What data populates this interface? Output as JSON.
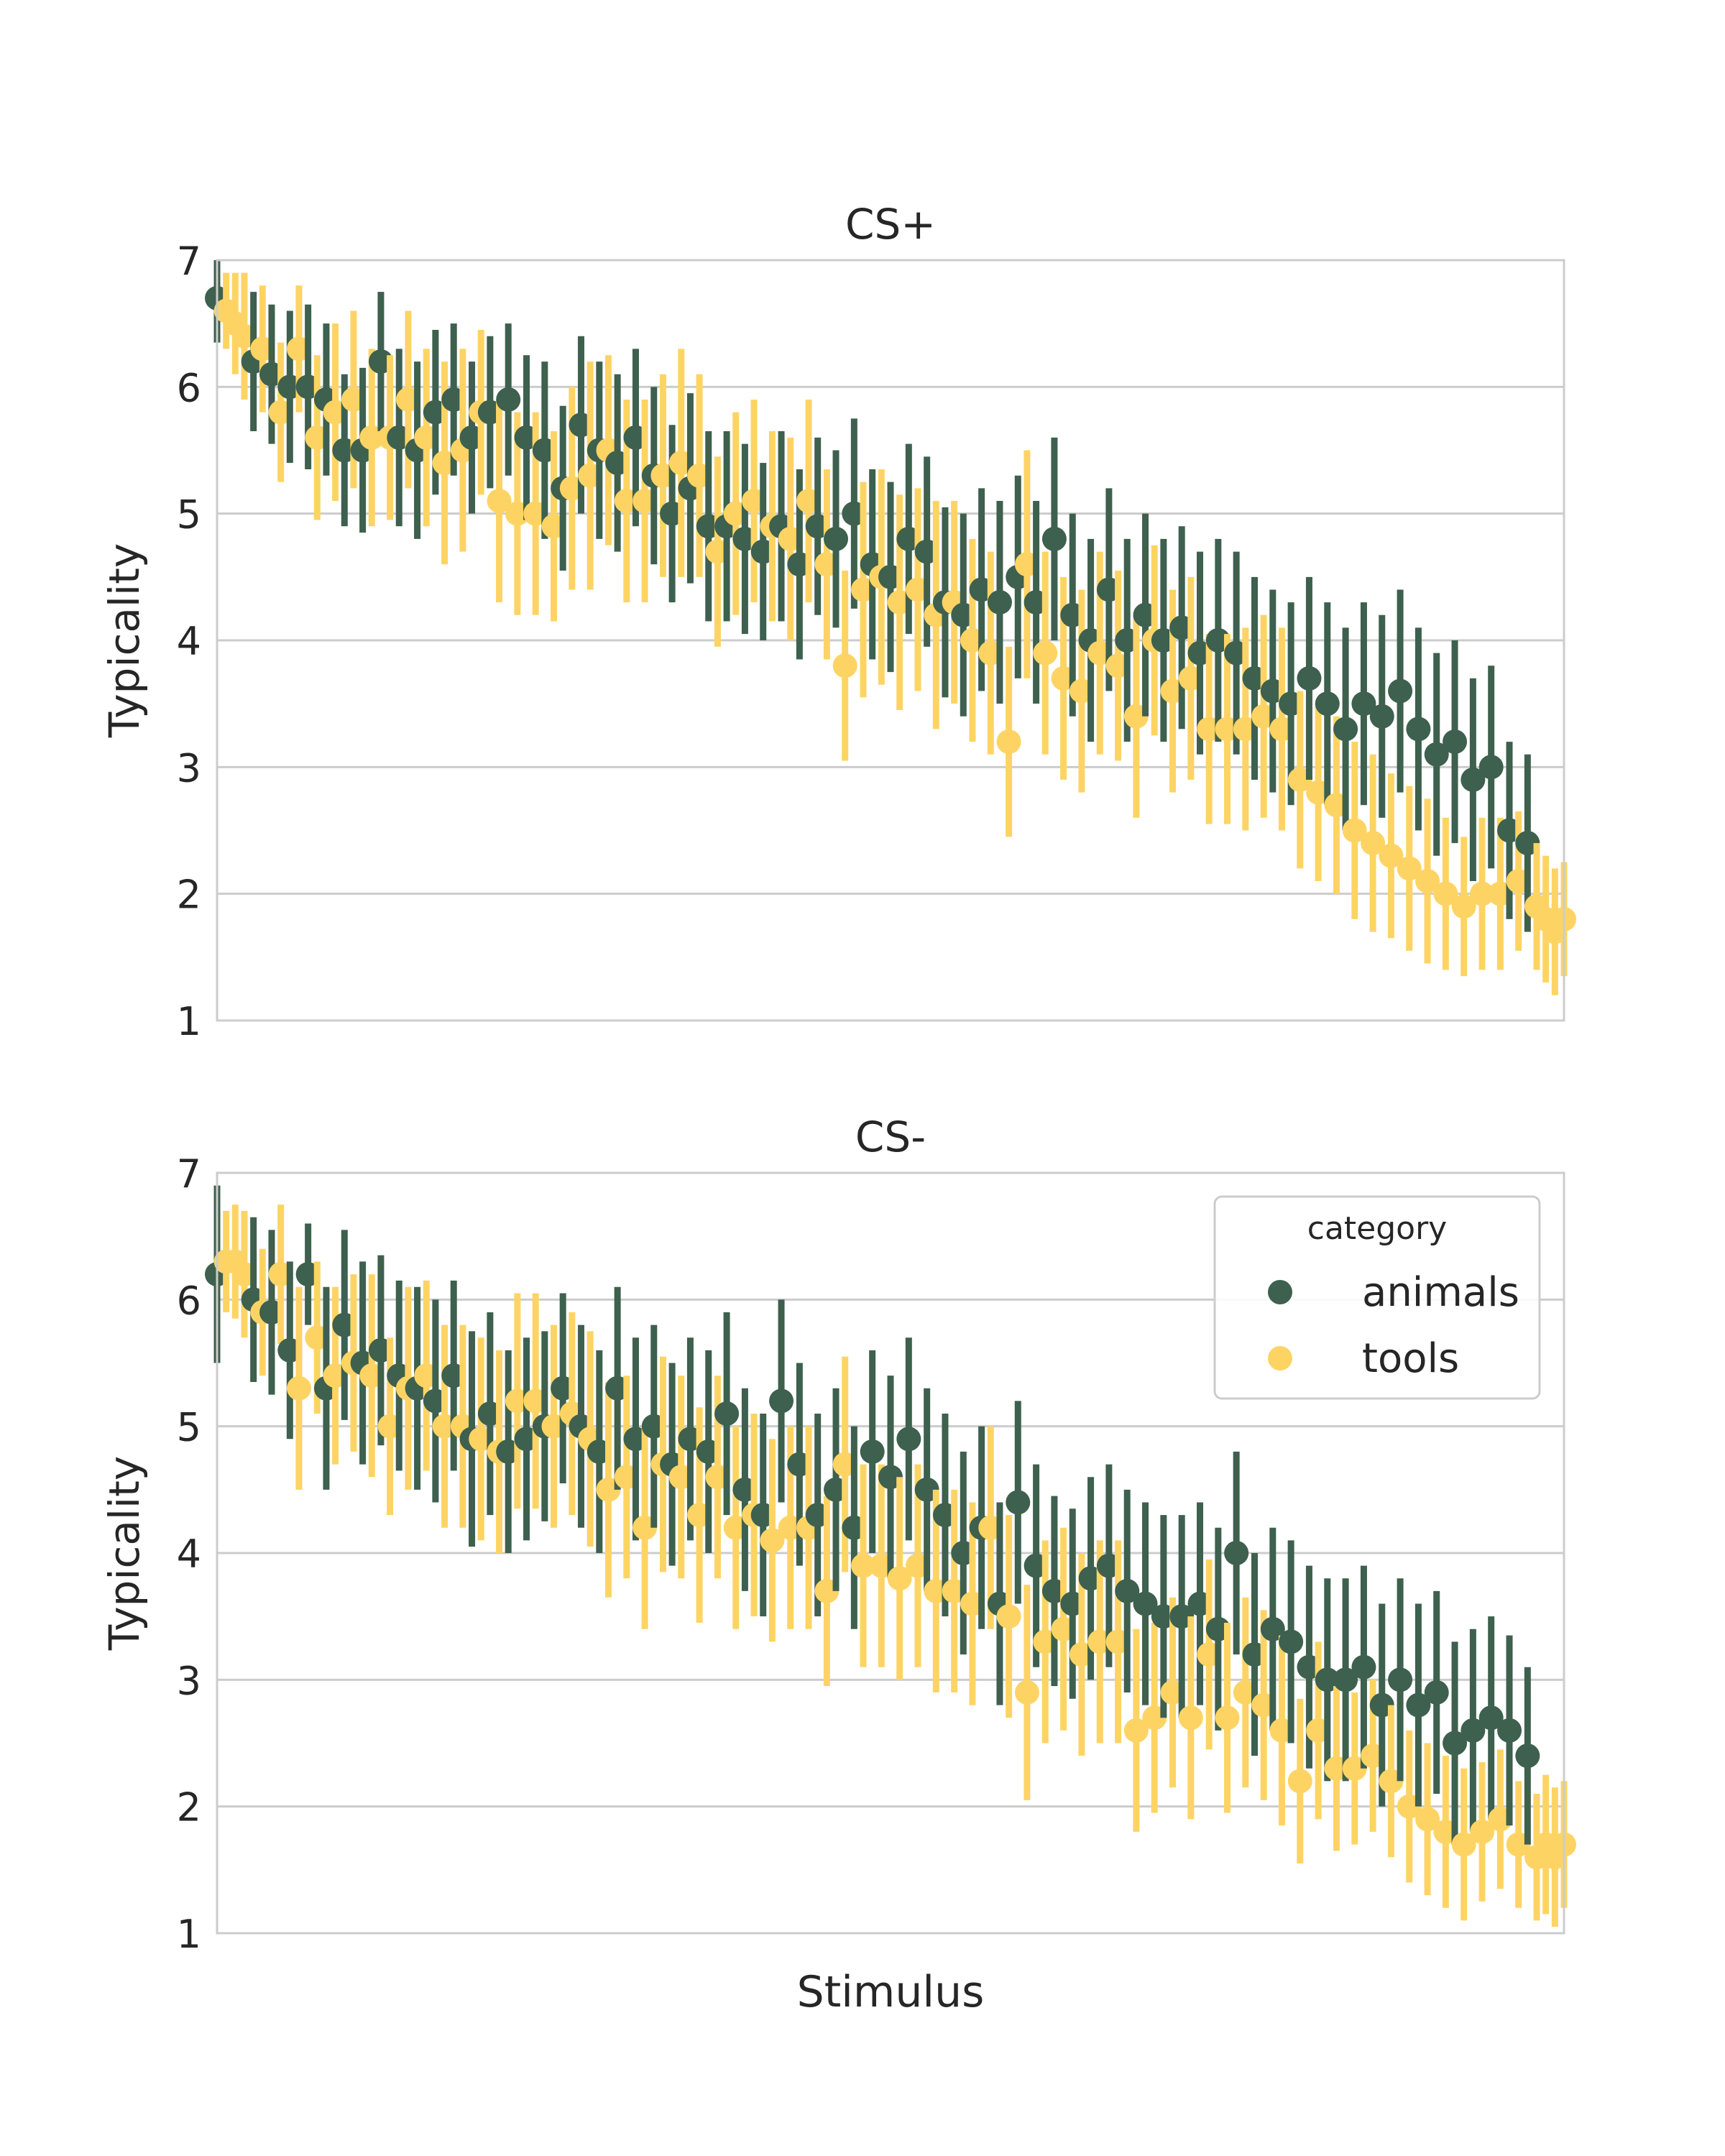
{
  "figure": {
    "xlabel": "Stimulus",
    "legend": {
      "title": "category",
      "placement": "top-right of lower panel",
      "items": [
        {
          "label": "animals",
          "color": "#3e604e"
        },
        {
          "label": "tools",
          "color": "#fdd464"
        }
      ]
    }
  },
  "chart_data": [
    {
      "type": "scatter",
      "title": "CS+",
      "xlabel": "",
      "ylabel": "Typicality",
      "ylim": [
        1,
        7
      ],
      "yticks": [
        1,
        2,
        3,
        4,
        5,
        6,
        7
      ],
      "grid": "horizontal",
      "error_bars": true,
      "series": [
        {
          "name": "animals",
          "color": "#3e604e",
          "x": [
            0,
            4,
            6,
            8,
            10,
            12,
            14,
            16,
            18,
            20,
            22,
            24,
            26,
            28,
            30,
            32,
            34,
            36,
            38,
            40,
            42,
            44,
            46,
            48,
            50,
            52,
            54,
            56,
            58,
            60,
            62,
            64,
            66,
            68,
            70,
            72,
            74,
            76,
            78,
            80,
            82,
            84,
            86,
            88,
            90,
            92,
            94,
            96,
            98,
            100,
            102,
            104,
            106,
            108,
            110,
            112,
            114,
            116,
            118,
            120,
            122,
            124,
            126,
            128,
            130,
            132,
            134,
            136,
            138,
            140,
            142,
            144
          ],
          "values": [
            6.7,
            6.2,
            6.1,
            6.0,
            6.0,
            5.9,
            5.5,
            5.5,
            6.2,
            5.6,
            5.5,
            5.8,
            5.9,
            5.6,
            5.8,
            5.9,
            5.6,
            5.5,
            5.2,
            5.7,
            5.5,
            5.4,
            5.6,
            5.3,
            5.0,
            5.2,
            4.9,
            4.9,
            4.8,
            4.7,
            4.9,
            4.6,
            4.9,
            4.8,
            5.0,
            4.6,
            4.5,
            4.8,
            4.7,
            4.3,
            4.2,
            4.4,
            4.3,
            4.5,
            4.3,
            4.8,
            4.2,
            4.0,
            4.4,
            4.0,
            4.2,
            4.0,
            4.1,
            3.9,
            4.0,
            3.9,
            3.7,
            3.6,
            3.5,
            3.7,
            3.5,
            3.3,
            3.5,
            3.4,
            3.6,
            3.3,
            3.1,
            3.2,
            2.9,
            3.0,
            2.5,
            2.4
          ],
          "errors": [
            0.35,
            0.55,
            0.55,
            0.6,
            0.65,
            0.6,
            0.6,
            0.65,
            0.55,
            0.7,
            0.7,
            0.65,
            0.6,
            0.6,
            0.6,
            0.6,
            0.65,
            0.7,
            0.65,
            0.7,
            0.7,
            0.7,
            0.7,
            0.7,
            0.7,
            0.75,
            0.75,
            0.75,
            0.75,
            0.7,
            0.75,
            0.75,
            0.7,
            0.7,
            0.75,
            0.75,
            0.75,
            0.75,
            0.75,
            0.75,
            0.8,
            0.8,
            0.8,
            0.8,
            0.8,
            0.8,
            0.8,
            0.8,
            0.8,
            0.8,
            0.8,
            0.8,
            0.8,
            0.8,
            0.8,
            0.8,
            0.8,
            0.8,
            0.8,
            0.8,
            0.8,
            0.8,
            0.8,
            0.8,
            0.8,
            0.8,
            0.8,
            0.8,
            0.8,
            0.8,
            0.7,
            0.7
          ]
        },
        {
          "name": "tools",
          "color": "#fdd464",
          "x": [
            1,
            2,
            3,
            5,
            7,
            9,
            11,
            13,
            15,
            17,
            19,
            21,
            23,
            25,
            27,
            29,
            31,
            33,
            35,
            37,
            39,
            41,
            43,
            45,
            47,
            49,
            51,
            53,
            55,
            57,
            59,
            61,
            63,
            65,
            67,
            69,
            71,
            73,
            75,
            77,
            79,
            81,
            83,
            85,
            87,
            89,
            91,
            93,
            95,
            97,
            99,
            101,
            103,
            105,
            107,
            109,
            111,
            113,
            115,
            117,
            119,
            121,
            123,
            125,
            127,
            129,
            131,
            133,
            135,
            137,
            139,
            141,
            143,
            145,
            146,
            147,
            148
          ],
          "values": [
            6.6,
            6.5,
            6.4,
            6.3,
            5.8,
            6.3,
            5.6,
            5.8,
            5.9,
            5.6,
            5.6,
            5.9,
            5.6,
            5.4,
            5.5,
            5.8,
            5.1,
            5.0,
            5.0,
            4.9,
            5.2,
            5.3,
            5.5,
            5.1,
            5.1,
            5.3,
            5.4,
            5.3,
            4.7,
            5.0,
            5.1,
            4.9,
            4.8,
            5.1,
            4.6,
            3.8,
            4.4,
            4.5,
            4.3,
            4.4,
            4.2,
            4.3,
            4.0,
            3.9,
            3.2,
            4.6,
            3.9,
            3.7,
            3.6,
            3.9,
            3.8,
            3.4,
            4.0,
            3.6,
            3.7,
            3.3,
            3.3,
            3.3,
            3.4,
            3.3,
            2.9,
            2.8,
            2.7,
            2.5,
            2.4,
            2.3,
            2.2,
            2.1,
            2.0,
            1.9,
            2.0,
            2.0,
            2.1,
            1.9,
            1.8,
            1.7,
            1.8
          ],
          "errors": [
            0.3,
            0.4,
            0.5,
            0.5,
            0.55,
            0.5,
            0.65,
            0.7,
            0.7,
            0.7,
            0.65,
            0.7,
            0.7,
            0.8,
            0.8,
            0.65,
            0.8,
            0.8,
            0.8,
            0.75,
            0.8,
            0.9,
            0.75,
            0.8,
            0.8,
            0.8,
            0.9,
            0.8,
            0.75,
            0.8,
            0.8,
            0.75,
            0.8,
            0.8,
            0.75,
            0.75,
            0.85,
            0.85,
            0.85,
            0.8,
            0.9,
            0.8,
            0.8,
            0.8,
            0.75,
            0.9,
            0.8,
            0.8,
            0.8,
            0.8,
            0.75,
            0.8,
            0.75,
            0.8,
            0.8,
            0.75,
            0.75,
            0.8,
            0.8,
            0.8,
            0.7,
            0.7,
            0.7,
            0.7,
            0.7,
            0.65,
            0.65,
            0.65,
            0.6,
            0.55,
            0.6,
            0.6,
            0.55,
            0.5,
            0.5,
            0.5,
            0.45
          ]
        }
      ]
    },
    {
      "type": "scatter",
      "title": "CS-",
      "xlabel": "Stimulus",
      "ylabel": "Typicality",
      "ylim": [
        1,
        7
      ],
      "yticks": [
        1,
        2,
        3,
        4,
        5,
        6,
        7
      ],
      "grid": "horizontal",
      "error_bars": true,
      "series": [
        {
          "name": "animals",
          "color": "#3e604e",
          "x": [
            0,
            4,
            6,
            8,
            10,
            12,
            14,
            16,
            18,
            20,
            22,
            24,
            26,
            28,
            30,
            32,
            34,
            36,
            38,
            40,
            42,
            44,
            46,
            48,
            50,
            52,
            54,
            56,
            58,
            60,
            62,
            64,
            66,
            68,
            70,
            72,
            74,
            76,
            78,
            80,
            82,
            84,
            86,
            88,
            90,
            92,
            94,
            96,
            98,
            100,
            102,
            104,
            106,
            108,
            110,
            112,
            114,
            116,
            118,
            120,
            122,
            124,
            126,
            128,
            130,
            132,
            134,
            136,
            138,
            140,
            142,
            144
          ],
          "values": [
            6.2,
            6.0,
            5.9,
            5.6,
            6.2,
            5.3,
            5.8,
            5.5,
            5.6,
            5.4,
            5.3,
            5.2,
            5.4,
            4.9,
            5.1,
            4.8,
            4.9,
            5.0,
            5.3,
            5.0,
            4.8,
            5.3,
            4.9,
            5.0,
            4.7,
            4.9,
            4.8,
            5.1,
            4.5,
            4.3,
            5.2,
            4.7,
            4.3,
            4.5,
            4.2,
            4.8,
            4.6,
            4.9,
            4.5,
            4.3,
            4.0,
            4.2,
            3.6,
            4.4,
            3.9,
            3.7,
            3.6,
            3.8,
            3.9,
            3.7,
            3.6,
            3.5,
            3.5,
            3.6,
            3.4,
            4.0,
            3.2,
            3.4,
            3.3,
            3.1,
            3.0,
            3.0,
            3.1,
            2.8,
            3.0,
            2.8,
            2.9,
            2.5,
            2.6,
            2.7,
            2.6,
            2.4
          ],
          "errors": [
            0.7,
            0.65,
            0.65,
            0.7,
            0.4,
            0.8,
            0.75,
            0.8,
            0.75,
            0.75,
            0.8,
            0.8,
            0.75,
            0.85,
            0.8,
            0.8,
            0.8,
            0.75,
            0.75,
            0.8,
            0.8,
            0.8,
            0.8,
            0.8,
            0.8,
            0.8,
            0.8,
            0.8,
            0.8,
            0.8,
            0.8,
            0.8,
            0.8,
            0.8,
            0.8,
            0.8,
            0.8,
            0.8,
            0.8,
            0.8,
            0.8,
            0.8,
            0.8,
            0.8,
            0.8,
            0.75,
            0.75,
            0.8,
            0.8,
            0.8,
            0.8,
            0.8,
            0.8,
            0.8,
            0.8,
            0.8,
            0.8,
            0.8,
            0.8,
            0.8,
            0.8,
            0.8,
            0.8,
            0.8,
            0.8,
            0.8,
            0.8,
            0.8,
            0.8,
            0.8,
            0.75,
            0.7
          ]
        },
        {
          "name": "tools",
          "color": "#fdd464",
          "x": [
            1,
            2,
            3,
            5,
            7,
            9,
            11,
            13,
            15,
            17,
            19,
            21,
            23,
            25,
            27,
            29,
            31,
            33,
            35,
            37,
            39,
            41,
            43,
            45,
            47,
            49,
            51,
            53,
            55,
            57,
            59,
            61,
            63,
            65,
            67,
            69,
            71,
            73,
            75,
            77,
            79,
            81,
            83,
            85,
            87,
            89,
            91,
            93,
            95,
            97,
            99,
            101,
            103,
            105,
            107,
            109,
            111,
            113,
            115,
            117,
            119,
            121,
            123,
            125,
            127,
            129,
            131,
            133,
            135,
            137,
            139,
            141,
            143,
            145,
            146,
            147,
            148
          ],
          "values": [
            6.3,
            6.3,
            6.2,
            5.9,
            6.2,
            5.3,
            5.7,
            5.4,
            5.5,
            5.4,
            5.0,
            5.3,
            5.4,
            5.0,
            5.0,
            4.9,
            4.8,
            5.2,
            5.2,
            5.0,
            5.1,
            4.9,
            4.5,
            4.6,
            4.2,
            4.7,
            4.6,
            4.3,
            4.6,
            4.2,
            4.3,
            4.1,
            4.2,
            4.2,
            3.7,
            4.7,
            3.9,
            3.9,
            3.8,
            3.9,
            3.7,
            3.7,
            3.6,
            4.2,
            3.5,
            2.9,
            3.3,
            3.4,
            3.2,
            3.3,
            3.3,
            2.6,
            2.7,
            2.9,
            2.7,
            3.2,
            2.7,
            2.9,
            2.8,
            2.6,
            2.2,
            2.6,
            2.3,
            2.3,
            2.4,
            2.2,
            2.0,
            1.9,
            1.8,
            1.7,
            1.8,
            1.9,
            1.7,
            1.6,
            1.7,
            1.6,
            1.7
          ],
          "errors": [
            0.4,
            0.45,
            0.5,
            0.5,
            0.55,
            0.8,
            0.6,
            0.7,
            0.7,
            0.8,
            0.7,
            0.8,
            0.75,
            0.8,
            0.8,
            0.8,
            0.8,
            0.85,
            0.85,
            0.8,
            0.8,
            0.85,
            0.85,
            0.8,
            0.8,
            0.85,
            0.8,
            0.85,
            0.8,
            0.8,
            0.8,
            0.8,
            0.8,
            0.8,
            0.75,
            0.85,
            0.8,
            0.8,
            0.8,
            0.8,
            0.8,
            0.8,
            0.8,
            0.8,
            0.8,
            0.85,
            0.8,
            0.8,
            0.8,
            0.8,
            0.8,
            0.8,
            0.75,
            0.75,
            0.8,
            0.75,
            0.75,
            0.75,
            0.75,
            0.75,
            0.65,
            0.7,
            0.65,
            0.6,
            0.6,
            0.6,
            0.6,
            0.6,
            0.6,
            0.6,
            0.55,
            0.55,
            0.5,
            0.5,
            0.55,
            0.55,
            0.5
          ]
        }
      ]
    }
  ]
}
